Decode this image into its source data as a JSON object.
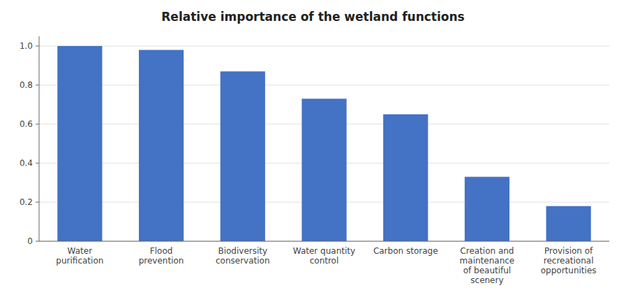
{
  "chart_data": {
    "type": "bar",
    "title": "Relative importance of the wetland functions",
    "categories": [
      "Water\npurification",
      "Flood\nprevention",
      "Biodiversity\nconservation",
      "Water quantity\ncontrol",
      "Carbon storage",
      "Creation and\nmaintenance\nof beautiful\nscenery",
      "Provision of\nrecreational\nopportunities"
    ],
    "values": [
      1.0,
      0.98,
      0.87,
      0.73,
      0.65,
      0.33,
      0.18
    ],
    "color": "#4472C4",
    "ylim": [
      0,
      1.05
    ],
    "yticks": [
      0,
      0.2,
      0.4,
      0.6,
      0.8,
      {
        "value": 1.0,
        "label": "1.0"
      }
    ],
    "grid": true
  }
}
